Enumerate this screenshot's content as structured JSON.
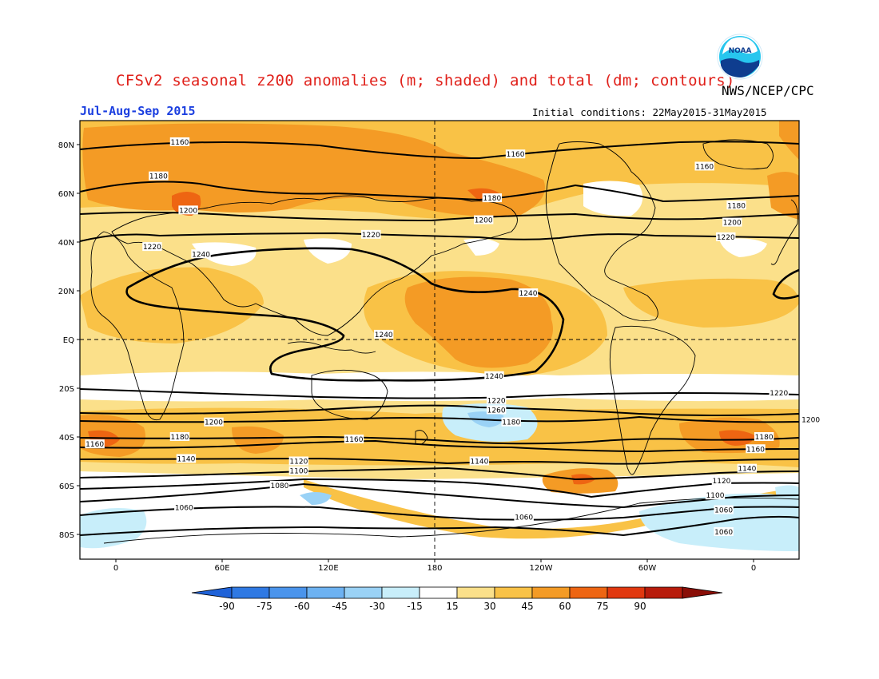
{
  "header": {
    "title": "CFSv2 seasonal z200 anomalies (m; shaded) and total (dm; contours)",
    "agency": "NWS/NCEP/CPC",
    "period": "Jul-Aug-Sep 2015",
    "initial_conditions": "Initial conditions: 22May2015-31May2015",
    "logo_text": "NOAA"
  },
  "axes": {
    "lat_labels": [
      "80N",
      "60N",
      "40N",
      "20N",
      "EQ",
      "20S",
      "40S",
      "60S",
      "80S"
    ],
    "lon_labels": [
      "0",
      "60E",
      "120E",
      "180",
      "120W",
      "60W",
      "0"
    ]
  },
  "colorbar": {
    "labels": [
      "-90",
      "-75",
      "-60",
      "-45",
      "-30",
      "-15",
      "15",
      "30",
      "45",
      "60",
      "75",
      "90"
    ],
    "colors": [
      "#1f62d8",
      "#2f79e3",
      "#4a94ec",
      "#6db2f2",
      "#9ad2f6",
      "#c8eefa",
      "#ffffff",
      "#fbe08a",
      "#f9c246",
      "#f49b25",
      "#ee6512",
      "#e1380f",
      "#b81b0b",
      "#8a0e07"
    ]
  },
  "chart_data": {
    "type": "map",
    "variable": "200 hPa geopotential height",
    "shading": "anomaly (m)",
    "contours": "total (dm)",
    "contour_labels": [
      {
        "value": "1160",
        "lat": 81,
        "lon": 30
      },
      {
        "value": "1160",
        "lat": 76,
        "lon": -172
      },
      {
        "value": "1160",
        "lat": 71,
        "lon": -83
      },
      {
        "value": "1180",
        "lat": 67,
        "lon": 20
      },
      {
        "value": "1180",
        "lat": 58,
        "lon": 177
      },
      {
        "value": "1180",
        "lat": 55,
        "lon": -68
      },
      {
        "value": "1200",
        "lat": 53,
        "lon": 34
      },
      {
        "value": "1200",
        "lat": 49,
        "lon": 173
      },
      {
        "value": "1200",
        "lat": 48,
        "lon": -70
      },
      {
        "value": "1220",
        "lat": 38,
        "lon": 17
      },
      {
        "value": "1220",
        "lat": 43,
        "lon": 120
      },
      {
        "value": "1220",
        "lat": 42,
        "lon": -73
      },
      {
        "value": "1240",
        "lat": 35,
        "lon": 40
      },
      {
        "value": "1240",
        "lat": 19,
        "lon": -166
      },
      {
        "value": "1240",
        "lat": 2,
        "lon": 126
      },
      {
        "value": "1240",
        "lat": -15,
        "lon": 178
      },
      {
        "value": "1220",
        "lat": -22,
        "lon": -48
      },
      {
        "value": "1220",
        "lat": -25,
        "lon": 179
      },
      {
        "value": "1260",
        "lat": -29,
        "lon": 179
      },
      {
        "value": "1200",
        "lat": -34,
        "lon": 46
      },
      {
        "value": "1200",
        "lat": -33,
        "lon": -33
      },
      {
        "value": "1180",
        "lat": -34,
        "lon": -174
      },
      {
        "value": "1180",
        "lat": -40,
        "lon": 30
      },
      {
        "value": "1180",
        "lat": -40,
        "lon": -55
      },
      {
        "value": "1160",
        "lat": -43,
        "lon": -10
      },
      {
        "value": "1160",
        "lat": -41,
        "lon": 112
      },
      {
        "value": "1160",
        "lat": -45,
        "lon": -59
      },
      {
        "value": "1140",
        "lat": -49,
        "lon": 33
      },
      {
        "value": "1140",
        "lat": -50,
        "lon": 171
      },
      {
        "value": "1140",
        "lat": -53,
        "lon": -63
      },
      {
        "value": "1120",
        "lat": -50,
        "lon": 86
      },
      {
        "value": "1120",
        "lat": -58,
        "lon": -75
      },
      {
        "value": "1100",
        "lat": -54,
        "lon": 86
      },
      {
        "value": "1100",
        "lat": -64,
        "lon": -78
      },
      {
        "value": "1080",
        "lat": -60,
        "lon": 77
      },
      {
        "value": "1060",
        "lat": -69,
        "lon": 32
      },
      {
        "value": "1060",
        "lat": -73,
        "lon": -168
      },
      {
        "value": "1060",
        "lat": -70,
        "lon": -74
      },
      {
        "value": "1060",
        "lat": -79,
        "lon": -74
      }
    ]
  }
}
